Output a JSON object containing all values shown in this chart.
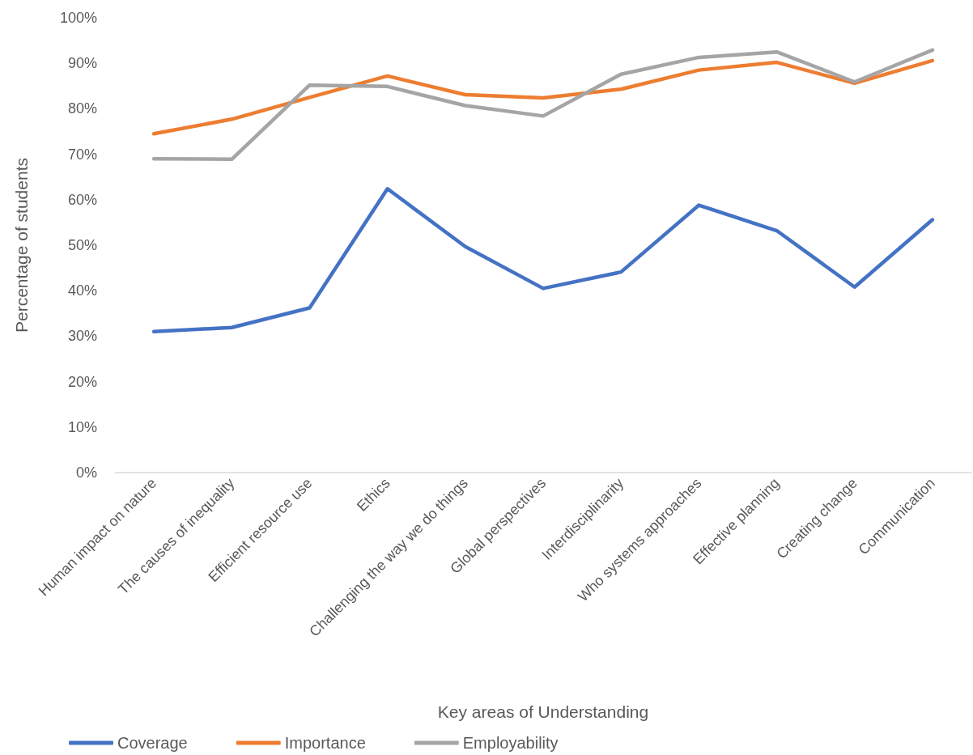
{
  "chart_data": {
    "type": "line",
    "xlabel": "Key areas of Understanding",
    "ylabel": "Percentage of students",
    "categories": [
      "Human impact on nature",
      "The causes of inequality",
      "Efficient resource use",
      "Ethics",
      "Challenging the way we do things",
      "Global perspectives",
      "Interdisciplinarity",
      "Who systems approaches",
      "Effective planning",
      "Creating change",
      "Communication"
    ],
    "series": [
      {
        "name": "Coverage",
        "color": "#4472c4",
        "values": [
          31.0,
          31.9,
          36.2,
          62.4,
          49.7,
          40.5,
          44.1,
          58.8,
          53.2,
          40.8,
          55.6
        ]
      },
      {
        "name": "Importance",
        "color": "#ed7d31",
        "values": [
          74.5,
          77.7,
          82.5,
          87.2,
          83.1,
          82.4,
          84.3,
          88.5,
          90.2,
          85.6,
          90.6
        ]
      },
      {
        "name": "Employability",
        "color": "#a5a5a5",
        "values": [
          69.0,
          68.9,
          85.2,
          84.9,
          80.7,
          78.4,
          87.6,
          91.3,
          92.5,
          85.9,
          92.9
        ]
      }
    ],
    "ylim": [
      0,
      100
    ],
    "yticks": [
      {
        "value": 0,
        "label": "0%"
      },
      {
        "value": 10,
        "label": "10%"
      },
      {
        "value": 20,
        "label": "20%"
      },
      {
        "value": 30,
        "label": "30%"
      },
      {
        "value": 40,
        "label": "40%"
      },
      {
        "value": 50,
        "label": "50%"
      },
      {
        "value": 60,
        "label": "60%"
      },
      {
        "value": 70,
        "label": "70%"
      },
      {
        "value": 80,
        "label": "80%"
      },
      {
        "value": 90,
        "label": "90%"
      },
      {
        "value": 100,
        "label": "100%"
      }
    ],
    "grid": false,
    "legend": "bottom",
    "marker": "none",
    "line_style": "solid"
  }
}
